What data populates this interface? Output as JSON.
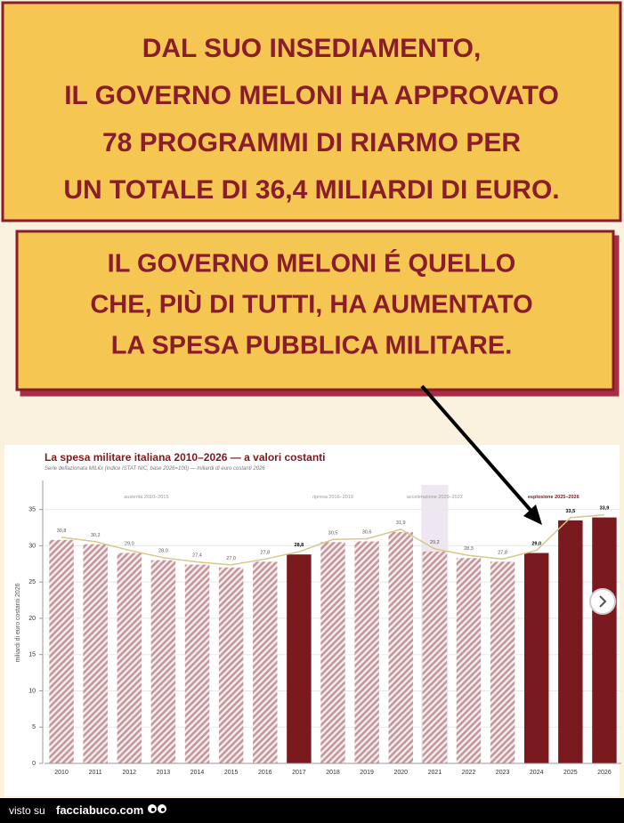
{
  "headline_top": [
    "DAL SUO INSEDIAMENTO,",
    "IL GOVERNO MELONI HA APPROVATO",
    "78 PROGRAMMI DI RIARMO PER",
    "UN TOTALE DI 36,4 MILIARDI DI EURO."
  ],
  "headline_bottom": [
    "IL GOVERNO MELONI É QUELLO",
    "CHE, PIÙ DI TUTTI, HA AUMENTATO",
    "LA SPESA PUBBLICA MILITARE."
  ],
  "footer": {
    "prefix": "visto su",
    "site": "facciabuco.com"
  },
  "chart_data": {
    "type": "bar",
    "title": "La spesa militare italiana 2010–2026 — a valori costanti",
    "subtitle": "Serie deflazionata MIL€x (indice ISTAT NIC, base 2026=100) — miliardi di euro costanti 2026",
    "y_label": "miliardi di euro costanti 2026",
    "categories": [
      "2010",
      "2011",
      "2012",
      "2013",
      "2014",
      "2015",
      "2016",
      "2017",
      "2018",
      "2019",
      "2020",
      "2021",
      "2022",
      "2023",
      "2024",
      "2025",
      "2026"
    ],
    "values": [
      30.8,
      30.2,
      29.0,
      28.0,
      27.4,
      27.0,
      27.8,
      28.8,
      30.5,
      30.6,
      31.9,
      29.2,
      28.3,
      27.8,
      29.0,
      33.5,
      33.9
    ],
    "value_labels": [
      "30,8",
      "30,2",
      "29,0",
      "28,0",
      "27,4",
      "27,0",
      "27,8",
      "28,8",
      "30,5",
      "30,6",
      "31,9",
      "29,2",
      "28,3",
      "27,8",
      "29,0",
      "33,5",
      "33,9"
    ],
    "bar_colors": [
      "#c4979b",
      "#c4979b",
      "#c4979b",
      "#c4979b",
      "#c4979b",
      "#c4979b",
      "#c4979b",
      "#7a1a1f",
      "#c4979b",
      "#c4979b",
      "#c4979b",
      "#c4979b",
      "#c4979b",
      "#c4979b",
      "#7a1a1f",
      "#7a1a1f",
      "#7a1a1f"
    ],
    "hatched": [
      true,
      true,
      true,
      true,
      true,
      true,
      true,
      false,
      true,
      true,
      true,
      true,
      true,
      true,
      false,
      false,
      false
    ],
    "trend_color": "#d6c98a",
    "annotations": [
      "austerità 2010–2015",
      "ripresa 2016–2019",
      "accelerazione 2020–2022",
      "esplosione 2025–2026"
    ],
    "ylim": [
      0,
      39
    ],
    "yticks": [
      0,
      5,
      10,
      15,
      20,
      25,
      30,
      35
    ],
    "grid": true
  }
}
